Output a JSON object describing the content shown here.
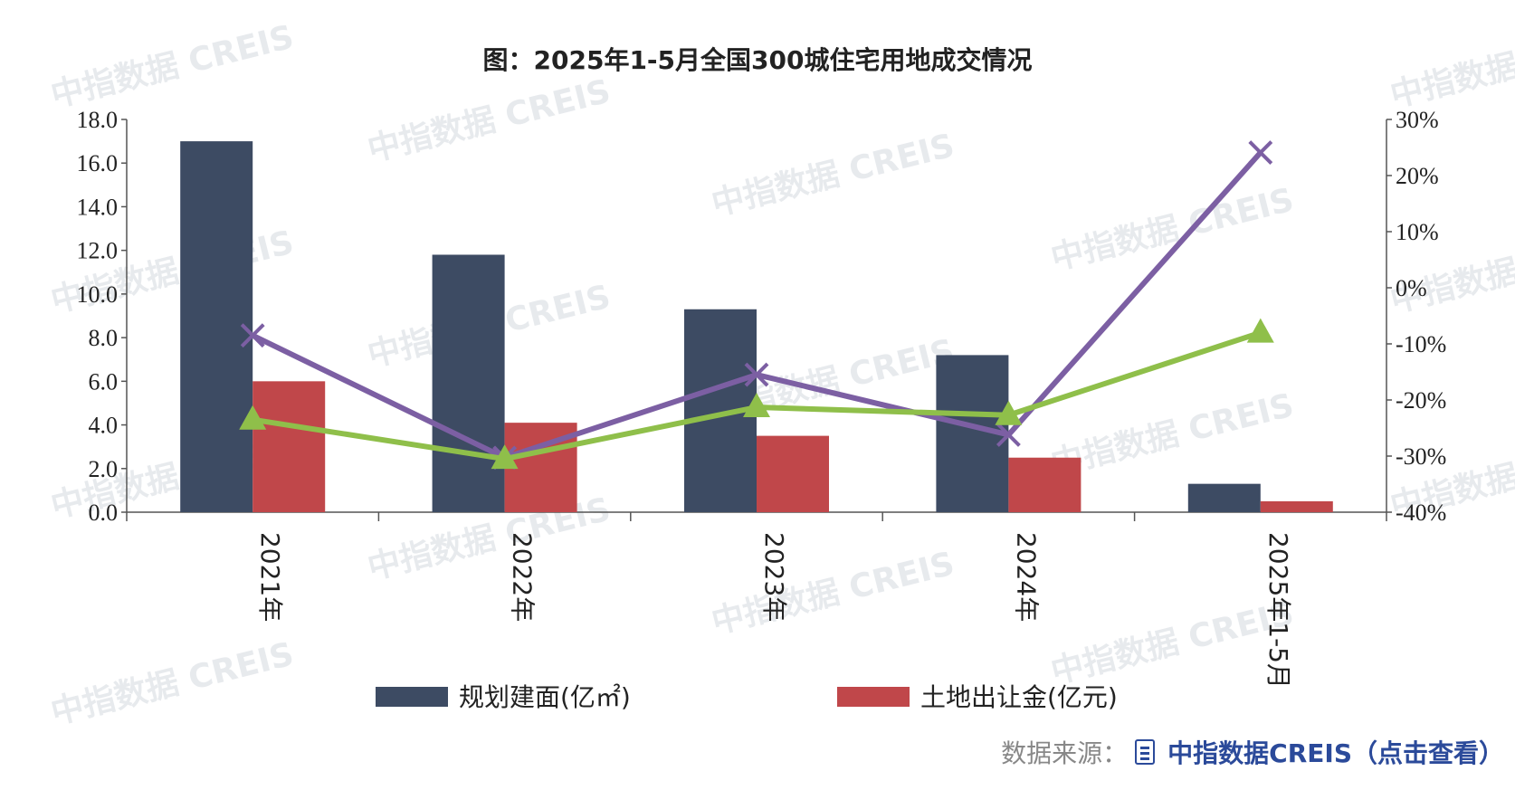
{
  "chart_data": {
    "type": "bar",
    "title": "图：2025年1-5月全国300城住宅用地成交情况",
    "categories": [
      "2021年",
      "2022年",
      "2023年",
      "2024年",
      "2025年1-5月"
    ],
    "series": [
      {
        "name": "规划建面(亿㎡)",
        "type": "bar",
        "axis": "left",
        "color": "#3d4b63",
        "values": [
          17.0,
          11.8,
          9.3,
          7.2,
          1.3
        ]
      },
      {
        "name": "土地出让金(亿元)",
        "type": "bar",
        "axis": "left",
        "color": "#c0474a",
        "values": [
          6.0,
          4.1,
          3.5,
          2.5,
          0.5
        ]
      },
      {
        "type": "line",
        "axis": "right",
        "color": "#7c5fa3",
        "marker": "x",
        "values": [
          -8.5,
          -30.3,
          -15.5,
          -26.2,
          24.1
        ]
      },
      {
        "type": "line",
        "axis": "right",
        "color": "#8fbf4a",
        "marker": "triangle",
        "values": [
          -23.5,
          -30.5,
          -21.3,
          -22.7,
          -8.0
        ]
      }
    ],
    "ylim_left": [
      0,
      18
    ],
    "yticks_left": [
      "0.0",
      "2.0",
      "4.0",
      "6.0",
      "8.0",
      "10.0",
      "12.0",
      "14.0",
      "16.0",
      "18.0"
    ],
    "ylim_right": [
      -40,
      30
    ],
    "yticks_right": [
      "-40%",
      "-30%",
      "-20%",
      "-10%",
      "0%",
      "10%",
      "20%",
      "30%"
    ],
    "legend_position": "bottom",
    "grid": false,
    "watermark": "中指数据 CREIS"
  },
  "footer": {
    "source_label": "数据来源：",
    "icon": "document-icon",
    "source_link": "中指数据CREIS（点击查看）"
  }
}
